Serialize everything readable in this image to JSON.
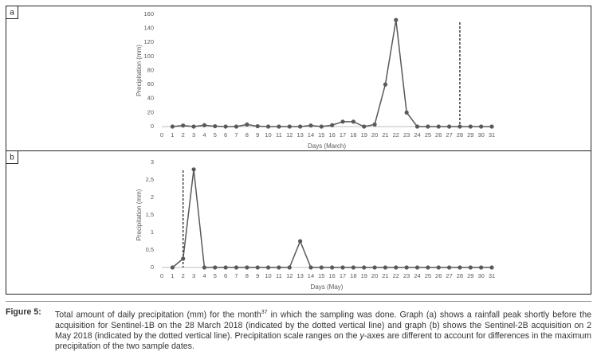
{
  "chart_data": [
    {
      "type": "line",
      "panel_label": "a",
      "y_label": "Precipitation (mm)",
      "x_label": "Days (March)",
      "x": [
        1,
        2,
        3,
        4,
        5,
        6,
        7,
        8,
        9,
        10,
        11,
        12,
        13,
        14,
        15,
        16,
        17,
        18,
        19,
        20,
        21,
        22,
        23,
        24,
        25,
        26,
        27,
        28,
        29,
        30,
        31
      ],
      "values": [
        0,
        1.5,
        0,
        2,
        0.5,
        0,
        0,
        3,
        0.5,
        0,
        0,
        0,
        0,
        1.5,
        0,
        2,
        7,
        7,
        0,
        3,
        60,
        152,
        20,
        0,
        0,
        0,
        0,
        0,
        0,
        0,
        0
      ],
      "color": "#595959",
      "xlim": [
        0,
        31
      ],
      "xticks": [
        0,
        1,
        2,
        3,
        4,
        5,
        6,
        7,
        8,
        9,
        10,
        11,
        12,
        13,
        14,
        15,
        16,
        17,
        18,
        19,
        20,
        21,
        22,
        23,
        24,
        25,
        26,
        27,
        28,
        29,
        30,
        31
      ],
      "ylim": [
        0,
        160
      ],
      "yticks": [
        0,
        20,
        40,
        60,
        80,
        100,
        120,
        140,
        160
      ],
      "grid": false,
      "vline": 28
    },
    {
      "type": "line",
      "panel_label": "b",
      "y_label": "Precipitation (mm)",
      "x_label": "Days (May)",
      "x": [
        1,
        2,
        3,
        4,
        5,
        6,
        7,
        8,
        9,
        10,
        11,
        12,
        13,
        14,
        15,
        16,
        17,
        18,
        19,
        20,
        21,
        22,
        23,
        24,
        25,
        26,
        27,
        28,
        29,
        30,
        31
      ],
      "values": [
        0,
        0.25,
        2.8,
        0,
        0,
        0,
        0,
        0,
        0,
        0,
        0,
        0,
        0.75,
        0,
        0,
        0,
        0,
        0,
        0,
        0,
        0,
        0,
        0,
        0,
        0,
        0,
        0,
        0,
        0,
        0,
        0
      ],
      "color": "#595959",
      "xlim": [
        0,
        31
      ],
      "xticks": [
        0,
        1,
        2,
        3,
        4,
        5,
        6,
        7,
        8,
        9,
        10,
        11,
        12,
        13,
        14,
        15,
        16,
        17,
        18,
        19,
        20,
        21,
        22,
        23,
        24,
        25,
        26,
        27,
        28,
        29,
        30,
        31
      ],
      "ylim": [
        0,
        3
      ],
      "yticks": [
        0,
        {
          "value": 0.5,
          "label": "0,5"
        },
        1,
        {
          "value": 1.5,
          "label": "1,5"
        },
        2,
        {
          "value": 2.5,
          "label": "2,5"
        },
        3
      ],
      "grid": false,
      "vline": 2
    }
  ],
  "caption": {
    "label": "Figure 5:",
    "text_before": "Total amount of daily precipitation (mm) for the month",
    "superscript": "37",
    "text_middle": " in which the sampling was done. Graph (a) shows a rainfall peak shortly before the acquisition for Sentinel-1B on the 28 March 2018 (indicated by the dotted vertical line) and graph (b) shows the Sentinel-2B acquisition on 2 May 2018 (indicated by the dotted vertical line). Precipitation scale ranges on the ",
    "italic": "y",
    "text_after": "-axes are different to account for differences in the maximum precipitation of the two sample dates."
  }
}
